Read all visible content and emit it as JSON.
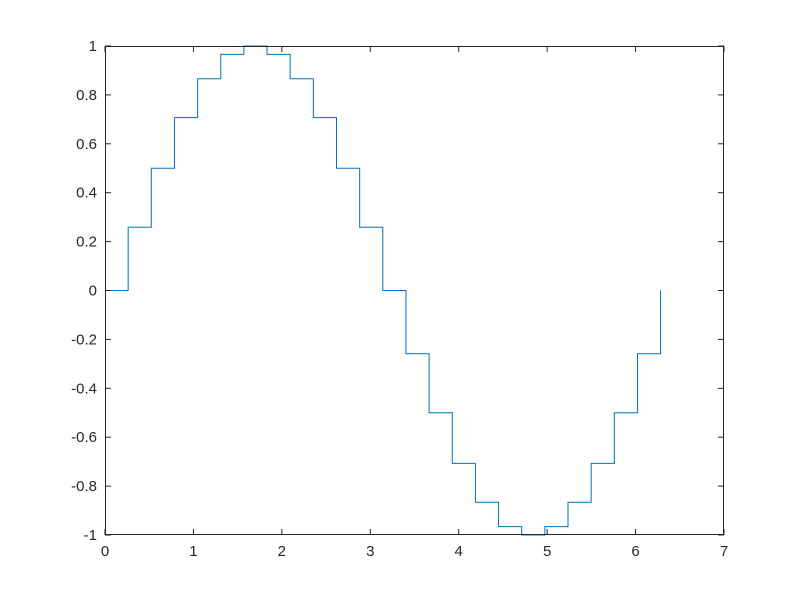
{
  "chart_data": {
    "type": "line",
    "style": "stairs",
    "title": "",
    "xlabel": "",
    "ylabel": "",
    "xlim": [
      0,
      7
    ],
    "ylim": [
      -1,
      1
    ],
    "grid": false,
    "color": "#0072BD",
    "xticks": [
      0,
      1,
      2,
      3,
      4,
      5,
      6,
      7
    ],
    "xtick_labels": [
      "0",
      "1",
      "2",
      "3",
      "4",
      "5",
      "6",
      "7"
    ],
    "yticks": [
      -1,
      -0.8,
      -0.6,
      -0.4,
      -0.2,
      0,
      0.2,
      0.4,
      0.6,
      0.8,
      1
    ],
    "ytick_labels": [
      "-1",
      "-0.8",
      "-0.6",
      "-0.4",
      "-0.2",
      "0",
      "0.2",
      "0.4",
      "0.6",
      "0.8",
      "1"
    ],
    "series": [
      {
        "x": [
          0,
          0.2618,
          0.5236,
          0.7854,
          1.0472,
          1.309,
          1.5708,
          1.8326,
          2.0944,
          2.3562,
          2.618,
          2.8798,
          3.1416,
          3.4034,
          3.6652,
          3.927,
          4.1888,
          4.4506,
          4.7124,
          4.9742,
          5.236,
          5.4978,
          5.7596,
          6.0214,
          6.2832
        ],
        "y": [
          0,
          0.2588,
          0.5,
          0.7071,
          0.866,
          0.9659,
          1,
          0.9659,
          0.866,
          0.7071,
          0.5,
          0.2588,
          0,
          -0.2588,
          -0.5,
          -0.7071,
          -0.866,
          -0.9659,
          -1,
          -0.9659,
          -0.866,
          -0.7071,
          -0.5,
          -0.2588,
          0
        ]
      }
    ]
  }
}
